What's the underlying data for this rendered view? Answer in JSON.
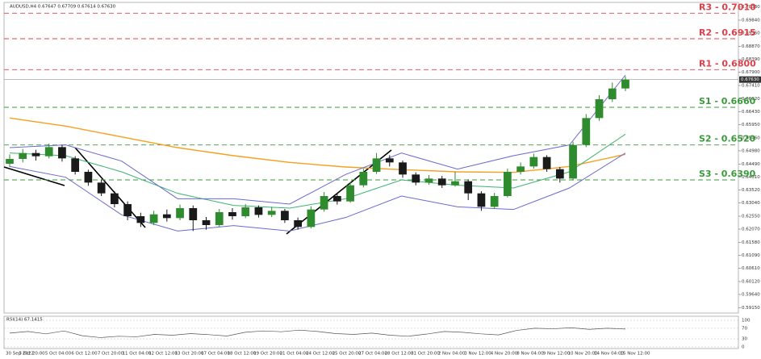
{
  "chart_data": {
    "type": "candlestick",
    "title": "AUDUSD,H4 0.67647 0.67709 0.67614 0.67630",
    "ylim": [
      0.5895,
      0.705
    ],
    "yticks": [
      {
        "value": 0.7033,
        "label": "0.70330"
      },
      {
        "value": 0.6984,
        "label": "0.69840"
      },
      {
        "value": 0.6936,
        "label": "0.69360"
      },
      {
        "value": 0.6887,
        "label": "0.68870"
      },
      {
        "value": 0.6839,
        "label": "0.68390"
      },
      {
        "value": 0.679,
        "label": "0.67900"
      },
      {
        "value": 0.6741,
        "label": "0.67410"
      },
      {
        "value": 0.6692,
        "label": "0.66920"
      },
      {
        "value": 0.6643,
        "label": "0.66430"
      },
      {
        "value": 0.6595,
        "label": "0.65950"
      },
      {
        "value": 0.6546,
        "label": "0.65460"
      },
      {
        "value": 0.6498,
        "label": "0.64980"
      },
      {
        "value": 0.6449,
        "label": "0.64490"
      },
      {
        "value": 0.6401,
        "label": "0.64010"
      },
      {
        "value": 0.6352,
        "label": "0.63520"
      },
      {
        "value": 0.6304,
        "label": "0.63040"
      },
      {
        "value": 0.6255,
        "label": "0.62550"
      },
      {
        "value": 0.6207,
        "label": "0.62070"
      },
      {
        "value": 0.6158,
        "label": "0.61580"
      },
      {
        "value": 0.6109,
        "label": "0.61090"
      },
      {
        "value": 0.6061,
        "label": "0.60610"
      },
      {
        "value": 0.6012,
        "label": "0.60120"
      },
      {
        "value": 0.5964,
        "label": "0.59640"
      },
      {
        "value": 0.5915,
        "label": "0.59150"
      }
    ],
    "x_labels": [
      "30 Sep 2022",
      "3 Oct 20:00",
      "5 Oct 04:00",
      "6 Oct 12:00",
      "7 Oct 20:00",
      "11 Oct 04:00",
      "12 Oct 12:00",
      "13 Oct 20:00",
      "17 Oct 04:00",
      "18 Oct 12:00",
      "19 Oct 20:00",
      "21 Oct 04:00",
      "24 Oct 12:00",
      "25 Oct 20:00",
      "27 Oct 04:00",
      "28 Oct 12:00",
      "31 Oct 20:00",
      "2 Nov 04:00",
      "3 Nov 12:00",
      "4 Nov 20:00",
      "8 Nov 04:00",
      "9 Nov 12:00",
      "10 Nov 20:00",
      "14 Nov 04:00",
      "15 Nov 12:00"
    ],
    "up_color": "#2e8b2e",
    "down_color": "#1a1a1a",
    "open": [
      0.645,
      0.6468,
      0.649,
      0.6478,
      0.6512,
      0.647,
      0.642,
      0.638,
      0.634,
      0.63,
      0.6255,
      0.623,
      0.6262,
      0.6248,
      0.6285,
      0.624,
      0.6222,
      0.627,
      0.6255,
      0.6288,
      0.626,
      0.6275,
      0.624,
      0.6215,
      0.628,
      0.633,
      0.631,
      0.637,
      0.642,
      0.647,
      0.6455,
      0.641,
      0.638,
      0.6395,
      0.637,
      0.6385,
      0.634,
      0.629,
      0.633,
      0.642,
      0.644,
      0.6475,
      0.643,
      0.6395,
      0.652,
      0.662,
      0.669,
      0.673
    ],
    "high": [
      0.6485,
      0.6505,
      0.6502,
      0.6525,
      0.652,
      0.6478,
      0.6428,
      0.6392,
      0.6348,
      0.631,
      0.6268,
      0.6275,
      0.628,
      0.6298,
      0.6295,
      0.6252,
      0.6282,
      0.6285,
      0.63,
      0.6295,
      0.629,
      0.6282,
      0.625,
      0.6292,
      0.6345,
      0.6342,
      0.6382,
      0.6432,
      0.649,
      0.6482,
      0.6462,
      0.6418,
      0.6408,
      0.6405,
      0.642,
      0.6392,
      0.6348,
      0.6342,
      0.6432,
      0.6455,
      0.6488,
      0.6482,
      0.6438,
      0.6532,
      0.6635,
      0.6705,
      0.6752,
      0.6775
    ],
    "low": [
      0.6438,
      0.6455,
      0.6462,
      0.647,
      0.6458,
      0.641,
      0.6368,
      0.633,
      0.6288,
      0.624,
      0.6215,
      0.6222,
      0.6235,
      0.624,
      0.62,
      0.6205,
      0.6215,
      0.6242,
      0.6248,
      0.625,
      0.6252,
      0.623,
      0.6205,
      0.621,
      0.6272,
      0.6298,
      0.6305,
      0.6362,
      0.6412,
      0.644,
      0.6398,
      0.637,
      0.6372,
      0.636,
      0.6365,
      0.6315,
      0.6275,
      0.6282,
      0.6325,
      0.641,
      0.6432,
      0.642,
      0.638,
      0.6388,
      0.6512,
      0.661,
      0.668,
      0.672
    ],
    "close": [
      0.6468,
      0.649,
      0.6478,
      0.6512,
      0.647,
      0.642,
      0.638,
      0.634,
      0.63,
      0.6255,
      0.623,
      0.6262,
      0.6248,
      0.6285,
      0.624,
      0.6222,
      0.627,
      0.6255,
      0.6288,
      0.626,
      0.6275,
      0.624,
      0.6215,
      0.628,
      0.633,
      0.631,
      0.637,
      0.642,
      0.647,
      0.6455,
      0.641,
      0.638,
      0.6395,
      0.637,
      0.6385,
      0.634,
      0.629,
      0.633,
      0.642,
      0.644,
      0.6475,
      0.643,
      0.6395,
      0.652,
      0.662,
      0.669,
      0.673,
      0.6763
    ],
    "series": [
      {
        "color": "#f5a020",
        "values": [
          0.662,
          0.659,
          0.655,
          0.651,
          0.648,
          0.6455,
          0.6438,
          0.6428,
          0.642,
          0.6418,
          0.644,
          0.6485
        ]
      },
      {
        "color": "#3cb371",
        "values": [
          0.649,
          0.648,
          0.642,
          0.634,
          0.6295,
          0.6285,
          0.632,
          0.639,
          0.637,
          0.636,
          0.642,
          0.656
        ]
      },
      {
        "color": "#6a6ad0",
        "values": [
          0.651,
          0.652,
          0.646,
          0.632,
          0.632,
          0.63,
          0.641,
          0.649,
          0.643,
          0.648,
          0.652,
          0.678
        ]
      },
      {
        "color": "#6a6ad0",
        "values": [
          0.644,
          0.64,
          0.626,
          0.62,
          0.622,
          0.62,
          0.625,
          0.633,
          0.629,
          0.628,
          0.636,
          0.649
        ]
      }
    ],
    "levels": [
      {
        "label": "R3 - 0.7010",
        "value": 0.701,
        "color": "#e0404a"
      },
      {
        "label": "R2 - 0.6915",
        "value": 0.6915,
        "color": "#e0404a"
      },
      {
        "label": "R1 - 0.6800",
        "value": 0.68,
        "color": "#e0404a"
      },
      {
        "label": "S1 - 0.6660",
        "value": 0.666,
        "color": "#3a9a3a"
      },
      {
        "label": "S2 - 0.6520",
        "value": 0.652,
        "color": "#3a9a3a"
      },
      {
        "label": "S3 - 0.6390",
        "value": 0.639,
        "color": "#3a9a3a"
      }
    ],
    "last_price": {
      "value": 0.6763,
      "label": "0.67630"
    },
    "rsi": {
      "title": "RSI(14) 67.1415",
      "ylim": [
        0,
        100
      ],
      "yticks": [
        0,
        30,
        70,
        100
      ],
      "color": "#555",
      "values": [
        52,
        58,
        49,
        60,
        42,
        35,
        40,
        38,
        47,
        44,
        50,
        46,
        41,
        55,
        60,
        57,
        63,
        58,
        50,
        47,
        52,
        44,
        40,
        48,
        58,
        55,
        49,
        45,
        62,
        70,
        68,
        72,
        66,
        70,
        67
      ]
    }
  }
}
